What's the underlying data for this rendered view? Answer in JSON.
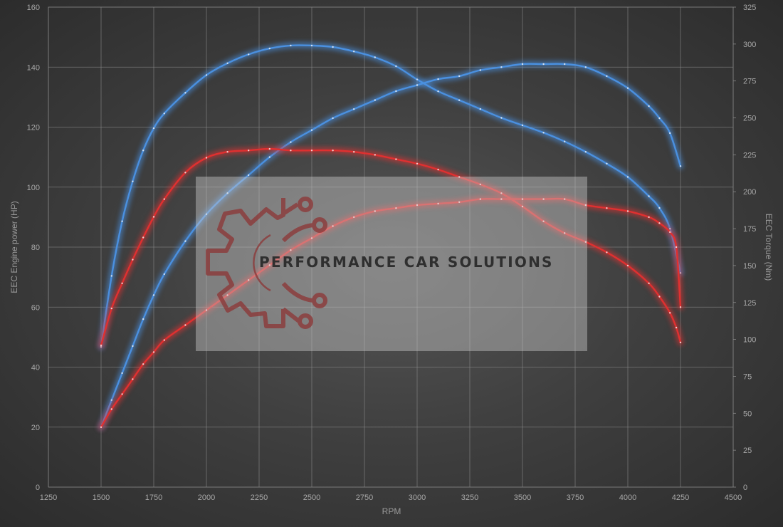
{
  "chart_data": {
    "type": "line",
    "xlabel": "RPM",
    "ylabel_left": "EEC Engine power (HP)",
    "ylabel_right": "EEC Torque (Nm)",
    "xlim": [
      1250,
      4500
    ],
    "ylim_left": [
      0,
      160
    ],
    "ylim_right": [
      0,
      325
    ],
    "x_ticks": [
      1250,
      1500,
      1750,
      2000,
      2250,
      2500,
      2750,
      3000,
      3250,
      3500,
      3750,
      4000,
      4250,
      4500
    ],
    "y_ticks_left": [
      0,
      20,
      40,
      60,
      80,
      100,
      120,
      140,
      160
    ],
    "y_ticks_right": [
      0,
      25,
      50,
      75,
      100,
      125,
      150,
      175,
      200,
      225,
      250,
      275,
      300,
      325
    ],
    "grid": true,
    "legend": "none",
    "series": [
      {
        "color": "#4a90e0",
        "axis": "right",
        "x": [
          1500,
          1550,
          1600,
          1650,
          1700,
          1750,
          1800,
          1900,
          2000,
          2100,
          2200,
          2300,
          2400,
          2500,
          2600,
          2700,
          2800,
          2900,
          3000,
          3100,
          3200,
          3300,
          3400,
          3500,
          3600,
          3700,
          3800,
          3900,
          4000,
          4100,
          4150,
          4200,
          4250
        ],
        "values": [
          95,
          143,
          180,
          207,
          228,
          243,
          253,
          267,
          279,
          287,
          293,
          297,
          299,
          299,
          298,
          295,
          291,
          285,
          276,
          268,
          262,
          256,
          250,
          245,
          240,
          234,
          227,
          219,
          210,
          197,
          189,
          175,
          145
        ]
      },
      {
        "color": "#4a90e0",
        "axis": "left",
        "x": [
          1500,
          1550,
          1600,
          1650,
          1700,
          1750,
          1800,
          1900,
          2000,
          2100,
          2200,
          2300,
          2400,
          2500,
          2600,
          2700,
          2800,
          2900,
          3000,
          3100,
          3200,
          3300,
          3400,
          3500,
          3600,
          3700,
          3800,
          3900,
          4000,
          4100,
          4150,
          4200,
          4250
        ],
        "values": [
          20,
          29,
          38,
          47,
          56,
          64,
          71,
          82,
          91,
          98,
          104,
          110,
          115,
          119,
          123,
          126,
          129,
          132,
          134,
          136,
          137,
          139,
          140,
          141,
          141,
          141,
          140,
          137,
          133,
          127,
          123,
          118,
          107
        ]
      },
      {
        "color": "#e03030",
        "axis": "right",
        "x": [
          1500,
          1550,
          1600,
          1650,
          1700,
          1750,
          1800,
          1900,
          2000,
          2100,
          2200,
          2300,
          2400,
          2500,
          2600,
          2700,
          2800,
          2900,
          3000,
          3100,
          3200,
          3300,
          3400,
          3500,
          3600,
          3700,
          3800,
          3900,
          4000,
          4100,
          4150,
          4200,
          4230,
          4250
        ],
        "values": [
          96,
          121,
          138,
          154,
          169,
          183,
          195,
          213,
          223,
          227,
          228,
          229,
          228,
          228,
          228,
          227,
          225,
          222,
          219,
          215,
          210,
          205,
          199,
          190,
          180,
          172,
          166,
          159,
          150,
          138,
          129,
          118,
          108,
          98
        ]
      },
      {
        "color": "#e03030",
        "axis": "left",
        "x": [
          1500,
          1550,
          1600,
          1650,
          1700,
          1750,
          1800,
          1900,
          2000,
          2100,
          2200,
          2300,
          2400,
          2500,
          2600,
          2700,
          2800,
          2900,
          3000,
          3100,
          3200,
          3300,
          3400,
          3500,
          3600,
          3700,
          3800,
          3900,
          4000,
          4100,
          4150,
          4200,
          4230,
          4250
        ],
        "values": [
          20,
          26,
          31,
          36,
          41,
          45,
          49,
          54,
          59,
          64,
          69,
          74,
          79,
          83,
          87,
          90,
          92,
          93,
          94,
          94.5,
          95,
          96,
          96,
          96,
          96,
          96,
          94,
          93,
          92,
          90,
          88,
          85,
          80,
          60
        ]
      }
    ]
  },
  "watermark": {
    "text": "PERFORMANCE CAR SOLUTIONS",
    "logo_icon": "gear-circuit-icon",
    "logo_color": "#8c3a3a"
  }
}
